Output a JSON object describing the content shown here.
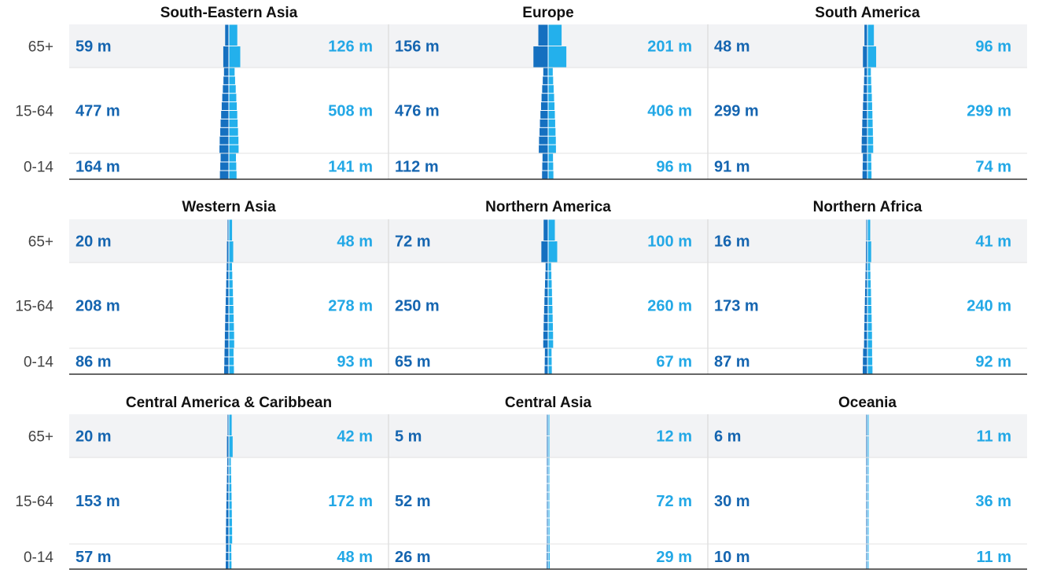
{
  "age_groups": [
    "65+",
    "15-64",
    "0-14"
  ],
  "colors": {
    "left_bar": "#1570c0",
    "right_bar": "#23b0ec",
    "left_label": "#1565b0",
    "right_label": "#23a8e6",
    "band": "#f2f3f5",
    "grid": "#e0e0e0",
    "axis": "#333333",
    "text": "#111111",
    "tick": "#444444"
  },
  "chart_data": {
    "type": "bar",
    "subtype": "population-pyramid-small-multiples",
    "units": "millions",
    "age_groups": [
      "65+",
      "15-64",
      "0-14"
    ],
    "panels": [
      {
        "title": "South-Eastern Asia",
        "left": [
          59,
          477,
          164
        ],
        "right": [
          126,
          508,
          141
        ],
        "left_labels": [
          "59 m",
          "477 m",
          "164 m"
        ],
        "right_labels": [
          "126 m",
          "508 m",
          "141 m"
        ]
      },
      {
        "title": "Europe",
        "left": [
          156,
          476,
          112
        ],
        "right": [
          201,
          406,
          96
        ],
        "left_labels": [
          "156 m",
          "476 m",
          "112 m"
        ],
        "right_labels": [
          "201 m",
          "406 m",
          "96 m"
        ]
      },
      {
        "title": "South America",
        "left": [
          48,
          299,
          91
        ],
        "right": [
          96,
          299,
          74
        ],
        "left_labels": [
          "48 m",
          "299 m",
          "91 m"
        ],
        "right_labels": [
          "96 m",
          "299 m",
          "74 m"
        ]
      },
      {
        "title": "Western Asia",
        "left": [
          20,
          208,
          86
        ],
        "right": [
          48,
          278,
          93
        ],
        "left_labels": [
          "20 m",
          "208 m",
          "86 m"
        ],
        "right_labels": [
          "48 m",
          "278 m",
          "93 m"
        ]
      },
      {
        "title": "Northern America",
        "left": [
          72,
          250,
          65
        ],
        "right": [
          100,
          260,
          67
        ],
        "left_labels": [
          "72 m",
          "250 m",
          "65 m"
        ],
        "right_labels": [
          "100 m",
          "260 m",
          "67 m"
        ]
      },
      {
        "title": "Northern Africa",
        "left": [
          16,
          173,
          87
        ],
        "right": [
          41,
          240,
          92
        ],
        "left_labels": [
          "16 m",
          "173 m",
          "87 m"
        ],
        "right_labels": [
          "41 m",
          "240 m",
          "92 m"
        ]
      },
      {
        "title": "Central America & Caribbean",
        "left": [
          20,
          153,
          57
        ],
        "right": [
          42,
          172,
          48
        ],
        "left_labels": [
          "20 m",
          "153 m",
          "57 m"
        ],
        "right_labels": [
          "42 m",
          "172 m",
          "48 m"
        ]
      },
      {
        "title": "Central Asia",
        "left": [
          5,
          52,
          26
        ],
        "right": [
          12,
          72,
          29
        ],
        "left_labels": [
          "5 m",
          "52 m",
          "26 m"
        ],
        "right_labels": [
          "12 m",
          "72 m",
          "29 m"
        ]
      },
      {
        "title": "Oceania",
        "left": [
          6,
          30,
          10
        ],
        "right": [
          11,
          36,
          11
        ],
        "left_labels": [
          "6 m",
          "30 m",
          "10 m"
        ],
        "right_labels": [
          "11 m",
          "36 m",
          "11 m"
        ]
      }
    ]
  }
}
